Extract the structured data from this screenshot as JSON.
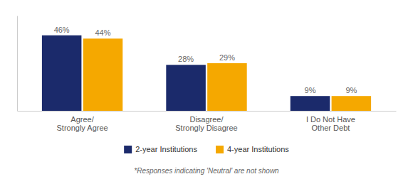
{
  "chart_data": {
    "type": "bar",
    "categories": [
      "Agree/\nStrongly Agree",
      "Disagree/\nStrongly Disagree",
      "I Do Not Have\nOther Debt"
    ],
    "series": [
      {
        "name": "2-year Institutions",
        "color": "#1B2A6B",
        "values": [
          46,
          28,
          9
        ],
        "value_labels": [
          "46%",
          "28%",
          "9%"
        ]
      },
      {
        "name": "4-year Institutions",
        "color": "#F5A800",
        "values": [
          44,
          29,
          9
        ],
        "value_labels": [
          "44%",
          "29%",
          "9%"
        ]
      }
    ],
    "ylim": [
      0,
      58
    ],
    "data_labels": true,
    "tick_labels": "x",
    "grid": false,
    "legend": "bottom",
    "annotations": [
      "*Responses indicating 'Neutral' are not shown"
    ]
  }
}
